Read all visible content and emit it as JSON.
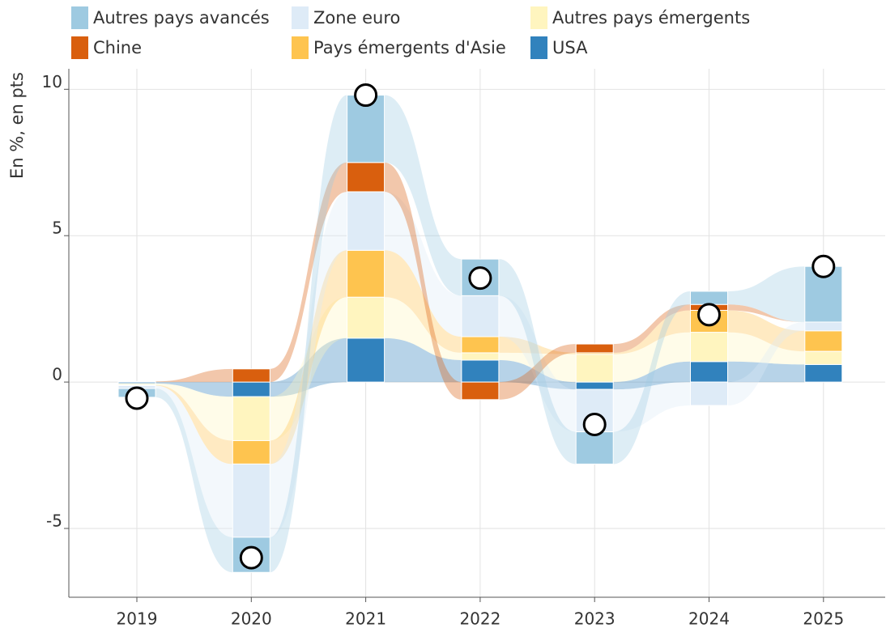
{
  "chart_data": {
    "type": "bar",
    "stacked": true,
    "y_label": "En %, en pts",
    "categories": [
      "2019",
      "2020",
      "2021",
      "2022",
      "2023",
      "2024",
      "2025"
    ],
    "series": [
      {
        "name": "Autres pays avancés",
        "color": "#9ecae1",
        "values": [
          -0.3,
          -1.2,
          2.3,
          1.25,
          -1.1,
          0.45,
          1.9
        ]
      },
      {
        "name": "Zone euro",
        "color": "#deebf7",
        "values": [
          -0.1,
          -2.5,
          2.0,
          1.4,
          -1.45,
          -0.8,
          0.3
        ]
      },
      {
        "name": "Autres pays émergents",
        "color": "#fff5bf",
        "values": [
          -0.05,
          -1.5,
          1.4,
          0.25,
          0.95,
          1.0,
          0.45
        ]
      },
      {
        "name": "Chine",
        "color": "#d95f0e",
        "values": [
          0.02,
          0.45,
          1.0,
          -0.6,
          0.3,
          0.2,
          0
        ]
      },
      {
        "name": "Pays émergents d'Asie",
        "color": "#fec44f",
        "values": [
          -0.02,
          -0.8,
          1.6,
          0.55,
          0.05,
          0.75,
          0.7
        ]
      },
      {
        "name": "USA",
        "color": "#3182bd",
        "values": [
          -0.05,
          -0.5,
          1.5,
          0.75,
          -0.25,
          0.7,
          0.6
        ]
      }
    ],
    "totals": [
      -0.55,
      -6.0,
      9.8,
      3.55,
      -1.45,
      2.3,
      3.95
    ],
    "ylim": [
      -7.35,
      10.7
    ],
    "yticks": [
      -5,
      0,
      5,
      10
    ],
    "grid": true
  }
}
